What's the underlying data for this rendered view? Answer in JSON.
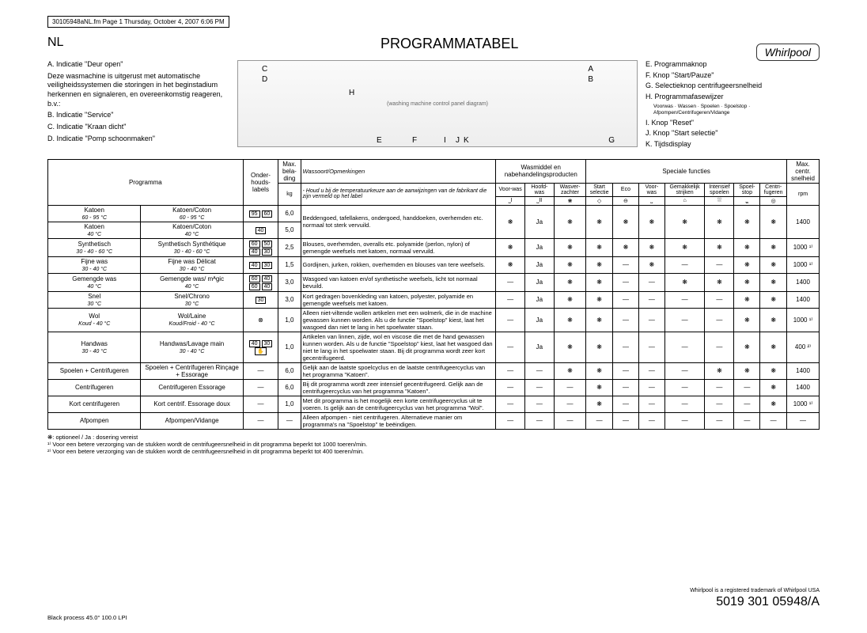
{
  "header_note": "30105948aNL.fm Page 1 Thursday, October 4, 2007 6:06 PM",
  "nl": "NL",
  "title": "PROGRAMMATABEL",
  "logo": "Whirlpool",
  "left": {
    "A": "A. Indicatie \"Deur open\"",
    "desc": "Deze wasmachine is uitgerust met automatische veiligheidssystemen die storingen in het beginstadium herkennen en signaleren, en overeenkomstig reageren, b.v.:",
    "B": "B. Indicatie \"Service\"",
    "C": "C. Indicatie \"Kraan dicht\"",
    "D": "D. Indicatie \"Pomp schoonmaken\""
  },
  "right": {
    "E": "E. Programmaknop",
    "F": "F. Knop \"Start/Pauze\"",
    "G": "G. Selectieknop centrifugeersnelheid",
    "H": "H. Programmafasewijzer",
    "Hsub": "Voorwas · Wassen · Spoelen · Spoelstop · Afpompen/Centrifugeren/Vidange",
    "I": "I. Knop \"Reset\"",
    "J": "J. Knop \"Start selectie\"",
    "K": "K. Tijdsdisplay"
  },
  "table_headers": {
    "programma": "Programma",
    "labels": "Onder-houds-labels",
    "max_load": "Max. bela-ding",
    "kg": "kg",
    "wassoort": "Wassoort/Opmerkingen",
    "wassoort_note": "- Houd u bij de temperatuurkeuze aan de aanwijzingen van de fabrikant die zijn vermeld op het label",
    "wasmiddel": "Wasmiddel en nabehandelingsproducten",
    "voorwas": "Voor-was",
    "hoofdwas": "Hoofd-was",
    "wasverzachter": "Wasver-zachter",
    "speciale": "Speciale functies",
    "start_sel": "Start selectie",
    "eco": "Eco",
    "voorwas2": "Voor-was",
    "strijk": "Gemakkelijk strijken",
    "intensief": "Intensief spoelen",
    "spoelstop": "Spoel-stop",
    "centri": "Centri-fugeren",
    "max_centr": "Max. centr. snelheid",
    "rpm": "rpm"
  },
  "rows": [
    {
      "p1": "Katoen",
      "t1": "60 - 95 °C",
      "p2": "Katoen/Coton",
      "t2": "60 - 95 °C",
      "care": "95 60",
      "load": "6,0",
      "desc": "Beddengoed, tafellakens, ondergoed, handdoeken, overhemden etc. normaal tot sterk vervuild.",
      "vw": "❋",
      "hw": "Ja",
      "wz": "❋",
      "ss": "❋",
      "eco": "❋",
      "vw2": "❋",
      "st": "❋",
      "in": "❋",
      "sp": "❋",
      "ce": "❋",
      "rpm": "1400",
      "rowspan": 2
    },
    {
      "p1": "Katoen",
      "t1": "40 °C",
      "p2": "Katoen/Coton",
      "t2": "40 °C",
      "care": "40",
      "load": "5,0",
      "desc": "",
      "merge": true
    },
    {
      "p1": "Synthetisch",
      "t1": "30 - 40 - 60 °C",
      "p2": "Synthetisch Synthétique",
      "t2": "30 - 40 - 60 °C",
      "care": "60 50 40 30",
      "load": "2,5",
      "desc": "Blouses, overhemden, overalls etc. polyamide (perlon, nylon) of gemengde weefsels met katoen, normaal vervuild.",
      "vw": "❋",
      "hw": "Ja",
      "wz": "❋",
      "ss": "❋",
      "eco": "❋",
      "vw2": "❋",
      "st": "❋",
      "in": "❋",
      "sp": "❋",
      "ce": "❋",
      "rpm": "1000 ¹⁾"
    },
    {
      "p1": "Fijne was",
      "t1": "30 - 40 °C",
      "p2": "Fijne was Délicat",
      "t2": "30 - 40 °C",
      "care": "40 30",
      "load": "1,5",
      "desc": "Gordijnen, jurken, rokken, overhemden en blouses van tere weefsels.",
      "vw": "❋",
      "hw": "Ja",
      "wz": "❋",
      "ss": "❋",
      "eco": "—",
      "vw2": "❋",
      "st": "—",
      "in": "—",
      "sp": "❋",
      "ce": "❋",
      "rpm": "1000 ¹⁾"
    },
    {
      "p1": "Gemengde was",
      "t1": "40 °C",
      "p2": "Gemengde was/ mᴬgic",
      "t2": "40 °C",
      "care": "60 40 60 40",
      "load": "3,0",
      "desc": "Wasgoed van katoen en/of synthetische weefsels, licht tot normaal bevuild.",
      "vw": "—",
      "hw": "Ja",
      "wz": "❋",
      "ss": "❋",
      "eco": "—",
      "vw2": "—",
      "st": "❋",
      "in": "❋",
      "sp": "❋",
      "ce": "❋",
      "rpm": "1400"
    },
    {
      "p1": "Snel",
      "t1": "30 °C",
      "p2": "Snel/Chrono",
      "t2": "30 °C",
      "care": "30",
      "load": "3,0",
      "desc": "Kort gedragen bovenkleding van katoen, polyester, polyamide en gemengde weefsels met katoen.",
      "vw": "—",
      "hw": "Ja",
      "wz": "❋",
      "ss": "❋",
      "eco": "—",
      "vw2": "—",
      "st": "—",
      "in": "—",
      "sp": "❋",
      "ce": "❋",
      "rpm": "1400"
    },
    {
      "p1": "Wol",
      "t1": "Koud - 40 °C",
      "p2": "Wol/Laine",
      "t2": "Koud/Froid - 40 °C",
      "care": "⊗",
      "load": "1,0",
      "desc": "Alleen niet-viltende wollen artikelen met een wolmerk, die in de machine gewassen kunnen worden. Als u de functie \"Spoelstop\" kiest, laat het wasgoed dan niet te lang in het spoelwater staan.",
      "vw": "—",
      "hw": "Ja",
      "wz": "❋",
      "ss": "❋",
      "eco": "—",
      "vw2": "—",
      "st": "—",
      "in": "—",
      "sp": "❋",
      "ce": "❋",
      "rpm": "1000 ¹⁾"
    },
    {
      "p1": "Handwas",
      "t1": "30 - 40 °C",
      "p2": "Handwas/Lavage main",
      "t2": "30 - 40 °C",
      "care": "40 30 ✋",
      "load": "1,0",
      "desc": "Artikelen van linnen, zijde, wol en viscose die met de hand gewassen kunnen worden. Als u de functie \"Spoelstop\" kiest, laat het wasgoed dan niet te lang in het spoelwater staan. Bij dit programma wordt zeer kort gecentrifugeerd.",
      "vw": "—",
      "hw": "Ja",
      "wz": "❋",
      "ss": "❋",
      "eco": "—",
      "vw2": "—",
      "st": "—",
      "in": "—",
      "sp": "❋",
      "ce": "❋",
      "rpm": "400 ²⁾"
    },
    {
      "p1": "Spoelen + Centrifugeren",
      "t1": "",
      "p2": "Spoelen + Centrifugeren Rinçage + Essorage",
      "t2": "",
      "care": "—",
      "load": "6,0",
      "desc": "Gelijk aan de laatste spoelcyclus en de laatste centrifugeercyclus van het programma \"Katoen\".",
      "vw": "—",
      "hw": "—",
      "wz": "❋",
      "ss": "❋",
      "eco": "—",
      "vw2": "—",
      "st": "—",
      "in": "❋",
      "sp": "❋",
      "ce": "❋",
      "rpm": "1400"
    },
    {
      "p1": "Centrifugeren",
      "t1": "",
      "p2": "Centrifugeren Essorage",
      "t2": "",
      "care": "—",
      "load": "6,0",
      "desc": "Bij dit programma wordt zeer intensief gecentrifugeerd. Gelijk aan de centrifugeercyclus van het programma \"Katoen\".",
      "vw": "—",
      "hw": "—",
      "wz": "—",
      "ss": "❋",
      "eco": "—",
      "vw2": "—",
      "st": "—",
      "in": "—",
      "sp": "—",
      "ce": "❋",
      "rpm": "1400"
    },
    {
      "p1": "Kort centrifugeren",
      "t1": "",
      "p2": "Kort centrif. Essorage doux",
      "t2": "",
      "care": "—",
      "load": "1,0",
      "desc": "Met dit programma is het mogelijk een korte centrifugeercyclus uit te voeren. Is gelijk aan de centrifugeercyclus van het programma \"Wol\".",
      "vw": "—",
      "hw": "—",
      "wz": "—",
      "ss": "❋",
      "eco": "—",
      "vw2": "—",
      "st": "—",
      "in": "—",
      "sp": "—",
      "ce": "❋",
      "rpm": "1000 ¹⁾"
    },
    {
      "p1": "Afpompen",
      "t1": "",
      "p2": "Afpompen/Vidange",
      "t2": "",
      "care": "—",
      "load": "—",
      "desc": "Alleen afpompen - niet centrifugeren. Alternatieve manier om programma's na \"Spoelstop\" te beëindigen.",
      "vw": "—",
      "hw": "—",
      "wz": "—",
      "ss": "—",
      "eco": "—",
      "vw2": "—",
      "st": "—",
      "in": "—",
      "sp": "—",
      "ce": "—",
      "rpm": "—"
    }
  ],
  "footnotes": {
    "star": "❋: optioneel / Ja : dosering vereist",
    "n1": "¹⁾ Voor een betere verzorging van de stukken wordt de centrifugeersnelheid in dit programma beperkt tot 1000 toeren/min.",
    "n2": "²⁾ Voor een betere verzorging van de stukken wordt de centrifugeersnelheid in dit programma beperkt tot 400 toeren/min."
  },
  "trademark": "Whirlpool is a registered trademark of Whirlpool USA",
  "part_no": "5019 301 05948/A",
  "bottom_note": "Black process 45.0° 100.0 LPI",
  "panel_letters": {
    "C": "C",
    "D": "D",
    "H": "H",
    "E": "E",
    "F": "F",
    "A": "A",
    "B": "B",
    "I": "I",
    "J": "J",
    "K": "K",
    "G": "G"
  }
}
